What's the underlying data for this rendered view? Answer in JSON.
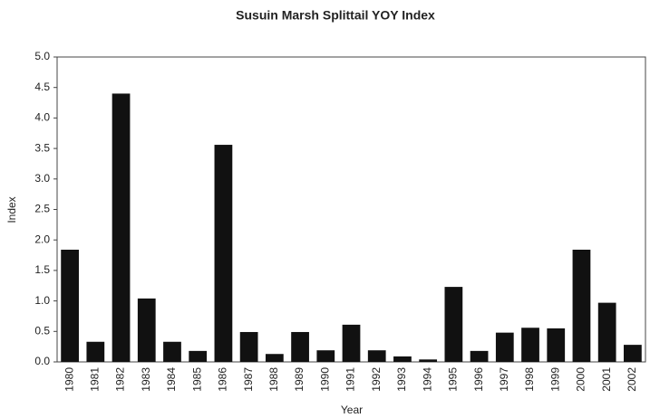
{
  "chart_data": {
    "type": "bar",
    "title": "Susuin Marsh Splittail YOY Index",
    "x_label": "Year",
    "y_label": "Index",
    "categories": [
      "1980",
      "1981",
      "1982",
      "1983",
      "1984",
      "1985",
      "1986",
      "1987",
      "1988",
      "1989",
      "1990",
      "1991",
      "1992",
      "1993",
      "1994",
      "1995",
      "1996",
      "1997",
      "1998",
      "1999",
      "2000",
      "2001",
      "2002"
    ],
    "values": [
      1.84,
      0.33,
      4.4,
      1.04,
      0.33,
      0.18,
      3.56,
      0.49,
      0.13,
      0.49,
      0.19,
      0.61,
      0.19,
      0.09,
      0.04,
      1.23,
      0.18,
      0.48,
      0.56,
      0.55,
      1.84,
      0.97,
      0.28
    ],
    "color": "#111111",
    "ylim": [
      0,
      5
    ],
    "yticks": [
      {
        "value": 0,
        "label": "0.0"
      },
      0.5,
      {
        "value": 1,
        "label": "1.0"
      },
      1.5,
      {
        "value": 2,
        "label": "2.0"
      },
      2.5,
      {
        "value": 3,
        "label": "3.0"
      },
      3.5,
      {
        "value": 4,
        "label": "4.0"
      },
      4.5,
      {
        "value": 5,
        "label": "5.0"
      }
    ],
    "grid": false
  }
}
